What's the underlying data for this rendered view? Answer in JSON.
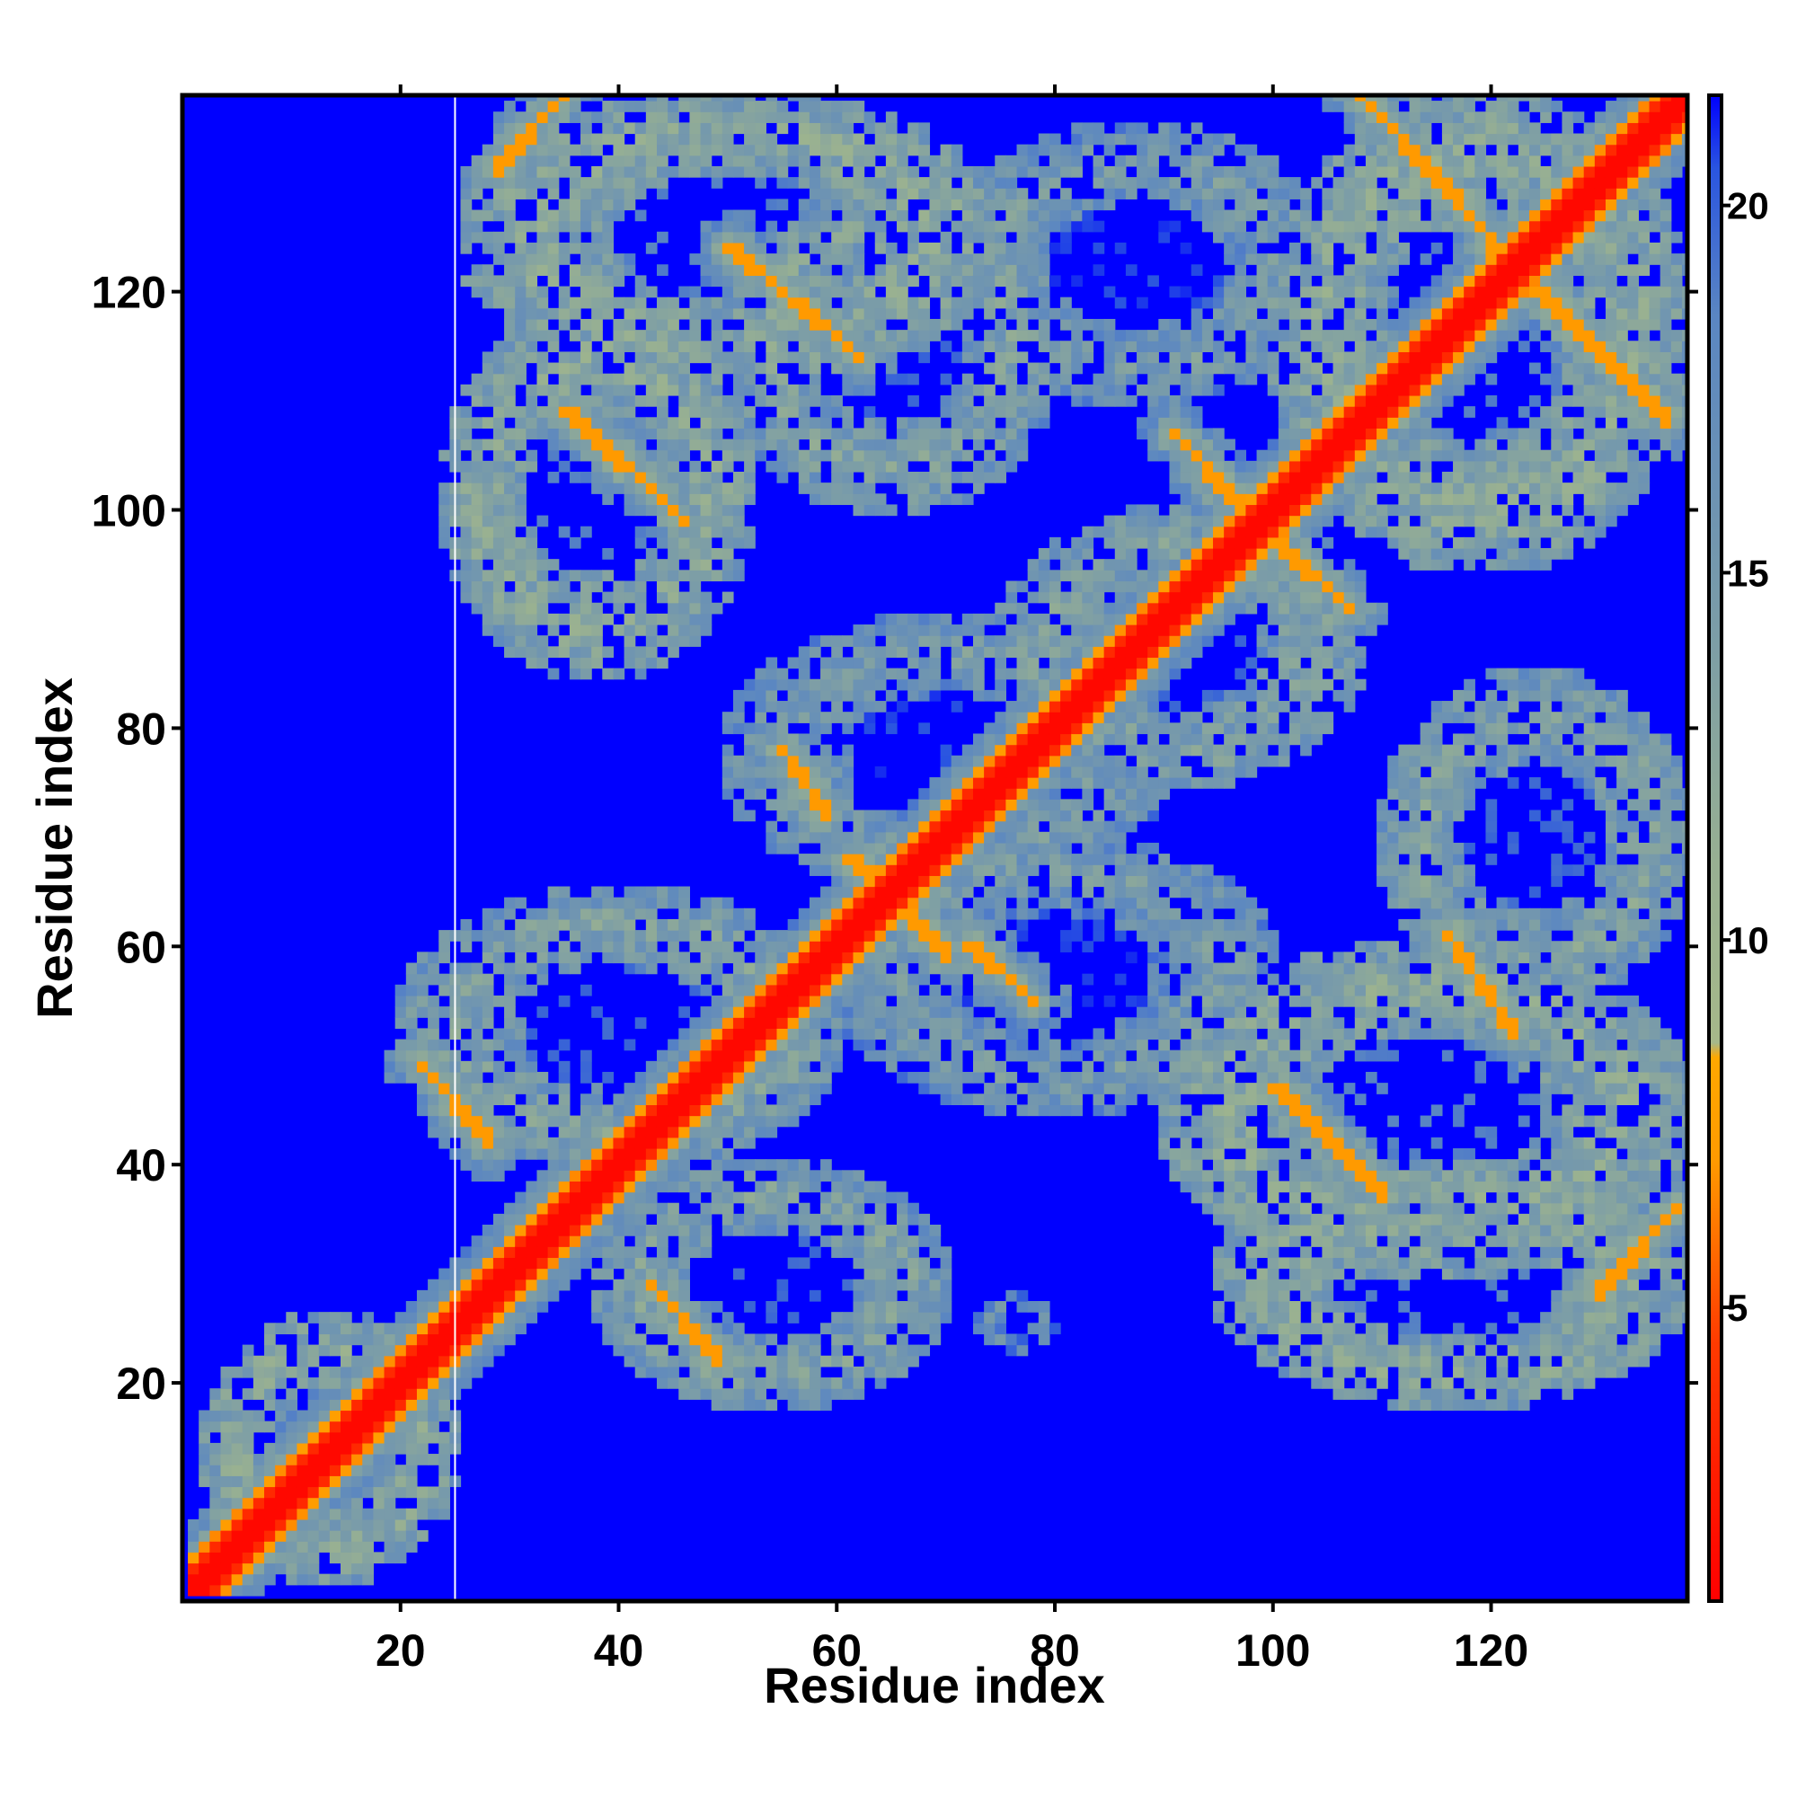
{
  "chart_data": {
    "type": "heatmap",
    "title": "",
    "xlabel": "Residue index",
    "ylabel": "Residue index",
    "n_residues": 138,
    "xlim": [
      1,
      138
    ],
    "ylim": [
      1,
      138
    ],
    "x_ticks": [
      20,
      40,
      60,
      80,
      100,
      120
    ],
    "y_ticks": [
      20,
      40,
      60,
      80,
      100,
      120
    ],
    "colorbar": {
      "range": [
        1,
        21.5
      ],
      "ticks": [
        5,
        10,
        15,
        20
      ],
      "stops": [
        {
          "value": 1,
          "color": "#ff0000"
        },
        {
          "value": 4.5,
          "color": "#ff3a00"
        },
        {
          "value": 7,
          "color": "#ff9a00"
        },
        {
          "value": 8.4,
          "color": "#ffa800"
        },
        {
          "value": 8.6,
          "color": "#a6b88a"
        },
        {
          "value": 11,
          "color": "#98b092"
        },
        {
          "value": 14,
          "color": "#7d9ea6"
        },
        {
          "value": 18.5,
          "color": "#5a86c2"
        },
        {
          "value": 20.5,
          "color": "#2a55e0"
        },
        {
          "value": 21.5,
          "color": "#0000ff"
        }
      ]
    },
    "background_value": 21.5,
    "diagonal_band_width": 3.5,
    "contact_bands": [
      {
        "x": [
          3,
          19
        ],
        "y": [
          5,
          21
        ],
        "direction": "parallel",
        "value": 7.5
      },
      {
        "x": [
          5,
          21
        ],
        "y": [
          3,
          19
        ],
        "direction": "parallel",
        "value": 7.5
      },
      {
        "x": [
          22,
          28
        ],
        "y": [
          49,
          42
        ],
        "direction": "anti",
        "value": 7
      },
      {
        "x": [
          43,
          49
        ],
        "y": [
          29,
          22
        ],
        "direction": "anti",
        "value": 7
      },
      {
        "x": [
          29,
          35
        ],
        "y": [
          131,
          138
        ],
        "direction": "parallel",
        "value": 7
      },
      {
        "x": [
          35,
          46
        ],
        "y": [
          109,
          99
        ],
        "direction": "anti",
        "value": 7
      },
      {
        "x": [
          50,
          62
        ],
        "y": [
          124,
          114
        ],
        "direction": "anti",
        "value": 7
      },
      {
        "x": [
          55,
          59
        ],
        "y": [
          78,
          72
        ],
        "direction": "anti",
        "value": 7
      },
      {
        "x": [
          61,
          70
        ],
        "y": [
          68,
          59
        ],
        "direction": "anti",
        "value": 7
      },
      {
        "x": [
          72,
          78
        ],
        "y": [
          60,
          55
        ],
        "direction": "anti",
        "value": 7
      },
      {
        "x": [
          91,
          97
        ],
        "y": [
          107,
          100
        ],
        "direction": "anti",
        "value": 7
      },
      {
        "x": [
          100,
          107
        ],
        "y": [
          97,
          91
        ],
        "direction": "anti",
        "value": 7
      },
      {
        "x": [
          100,
          110
        ],
        "y": [
          47,
          37
        ],
        "direction": "anti",
        "value": 7
      },
      {
        "x": [
          108,
          125
        ],
        "y": [
          138,
          119
        ],
        "direction": "anti",
        "value": 7
      },
      {
        "x": [
          116,
          122
        ],
        "y": [
          61,
          52
        ],
        "direction": "anti",
        "value": 7
      },
      {
        "x": [
          120,
          136
        ],
        "y": [
          124,
          108
        ],
        "direction": "anti",
        "value": 7
      },
      {
        "x": [
          130,
          137
        ],
        "y": [
          28,
          36
        ],
        "direction": "parallel",
        "value": 7
      }
    ],
    "contact_clusters": [
      {
        "x": [
          24,
          52
        ],
        "y": [
          85,
          118
        ],
        "value": 12
      },
      {
        "x": [
          26,
          75
        ],
        "y": [
          112,
          138
        ],
        "value": 12
      },
      {
        "x": [
          50,
          80
        ],
        "y": [
          100,
          130
        ],
        "value": 13
      },
      {
        "x": [
          70,
          105
        ],
        "y": [
          110,
          135
        ],
        "value": 14
      },
      {
        "x": [
          100,
          138
        ],
        "y": [
          95,
          138
        ],
        "value": 12
      },
      {
        "x": [
          75,
          108
        ],
        "y": [
          75,
          100
        ],
        "value": 13
      },
      {
        "x": [
          50,
          90
        ],
        "y": [
          65,
          90
        ],
        "value": 14
      },
      {
        "x": [
          20,
          60
        ],
        "y": [
          40,
          65
        ],
        "value": 13
      },
      {
        "x": [
          38,
          70
        ],
        "y": [
          18,
          40
        ],
        "value": 13
      },
      {
        "x": [
          60,
          100
        ],
        "y": [
          45,
          70
        ],
        "value": 14
      },
      {
        "x": [
          90,
          138
        ],
        "y": [
          30,
          60
        ],
        "value": 12
      },
      {
        "x": [
          95,
          138
        ],
        "y": [
          18,
          40
        ],
        "value": 12
      },
      {
        "x": [
          110,
          138
        ],
        "y": [
          55,
          85
        ],
        "value": 13
      },
      {
        "x": [
          73,
          80
        ],
        "y": [
          23,
          28
        ],
        "value": 16
      },
      {
        "x": [
          2,
          25
        ],
        "y": [
          2,
          26
        ],
        "value": 12
      }
    ],
    "vertical_line": {
      "x": 25.5,
      "color": "#ffffff"
    }
  }
}
